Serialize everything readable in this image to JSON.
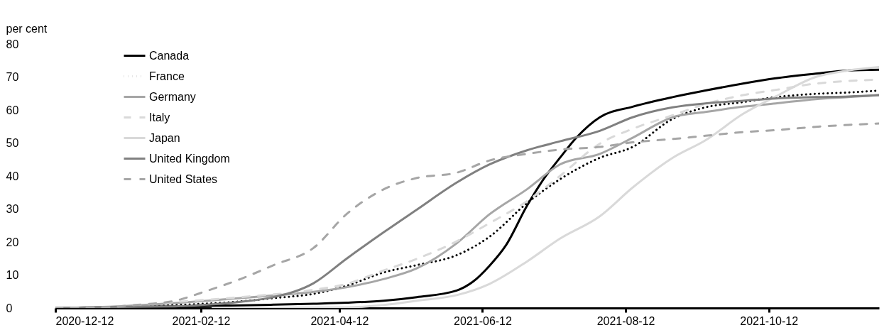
{
  "chart_data": {
    "type": "line",
    "ylabel": "per cent",
    "xlim": [
      "2020-12-12",
      "2021-11-28"
    ],
    "xticks": [
      "2020-12-12",
      "2021-02-12",
      "2021-04-12",
      "2021-06-12",
      "2021-08-12",
      "2021-10-12"
    ],
    "ylim": [
      0,
      80
    ],
    "yticks": [
      0,
      10,
      20,
      30,
      40,
      50,
      60,
      70,
      80
    ],
    "grid": false,
    "legend": "top left",
    "series": [
      {
        "name": "Canada",
        "color": "#000000",
        "line_style": "solid",
        "x": [
          "2020-12-12",
          "2021-01-01",
          "2021-02-01",
          "2021-03-01",
          "2021-03-15",
          "2021-04-01",
          "2021-04-15",
          "2021-05-01",
          "2021-05-15",
          "2021-06-01",
          "2021-06-08",
          "2021-06-15",
          "2021-06-22",
          "2021-07-01",
          "2021-07-08",
          "2021-07-15",
          "2021-07-22",
          "2021-08-01",
          "2021-08-15",
          "2021-09-01",
          "2021-09-15",
          "2021-10-01",
          "2021-10-15",
          "2021-11-01",
          "2021-11-15",
          "2021-11-28"
        ],
        "values": [
          0,
          0.2,
          0.5,
          0.8,
          1.0,
          1.3,
          1.6,
          2.2,
          3.3,
          5.3,
          8,
          12.8,
          19,
          31,
          39,
          45.5,
          51.6,
          57.8,
          61,
          63.9,
          65.9,
          68,
          69.6,
          71,
          72,
          72.2
        ]
      },
      {
        "name": "France",
        "color": "#000000",
        "line_style": "dotted",
        "x": [
          "2020-12-12",
          "2021-01-01",
          "2021-02-01",
          "2021-03-01",
          "2021-03-15",
          "2021-04-01",
          "2021-04-15",
          "2021-05-01",
          "2021-05-15",
          "2021-06-01",
          "2021-06-15",
          "2021-07-01",
          "2021-07-15",
          "2021-08-01",
          "2021-08-15",
          "2021-09-01",
          "2021-09-15",
          "2021-10-01",
          "2021-10-15",
          "2021-11-01",
          "2021-11-15",
          "2021-11-28"
        ],
        "values": [
          0,
          0.1,
          0.9,
          2.0,
          3.0,
          4.3,
          6.7,
          10.8,
          13,
          16,
          21.6,
          31.8,
          39,
          45.5,
          48.8,
          57.3,
          60.8,
          62.4,
          63.9,
          64.9,
          65.3,
          65.9
        ]
      },
      {
        "name": "Germany",
        "color": "#a6a6a6",
        "line_style": "solid",
        "x": [
          "2020-12-12",
          "2021-01-01",
          "2021-02-01",
          "2021-03-01",
          "2021-03-15",
          "2021-04-01",
          "2021-04-15",
          "2021-05-01",
          "2021-05-15",
          "2021-06-01",
          "2021-06-15",
          "2021-07-01",
          "2021-07-15",
          "2021-08-01",
          "2021-08-15",
          "2021-09-01",
          "2021-09-15",
          "2021-10-01",
          "2021-10-15",
          "2021-11-01",
          "2021-11-15",
          "2021-11-28"
        ],
        "values": [
          0,
          0.3,
          1.5,
          3.0,
          3.8,
          4.9,
          6.3,
          8.8,
          12,
          19.6,
          28.4,
          36,
          43.5,
          46.7,
          51.6,
          57.8,
          59.4,
          61,
          62,
          63.3,
          63.9,
          64.5
        ]
      },
      {
        "name": "Italy",
        "color": "#d9d9d9",
        "line_style": "dashed",
        "x": [
          "2020-12-12",
          "2021-01-01",
          "2021-02-01",
          "2021-03-01",
          "2021-04-01",
          "2021-04-15",
          "2021-05-01",
          "2021-05-15",
          "2021-06-01",
          "2021-06-15",
          "2021-07-01",
          "2021-07-15",
          "2021-08-01",
          "2021-08-15",
          "2021-09-01",
          "2021-09-15",
          "2021-10-01",
          "2021-10-15",
          "2021-11-01",
          "2021-11-15",
          "2021-11-28"
        ],
        "values": [
          0,
          0.2,
          1.8,
          3.3,
          5.5,
          7.3,
          11.4,
          14.9,
          20.2,
          25.7,
          32.4,
          40,
          49.8,
          54.3,
          58.4,
          61.8,
          64.5,
          66.1,
          68,
          68.8,
          69.2
        ]
      },
      {
        "name": "Japan",
        "color": "#d9d9d9",
        "line_style": "solid",
        "x": [
          "2021-02-17",
          "2021-04-15",
          "2021-05-01",
          "2021-05-15",
          "2021-06-01",
          "2021-06-15",
          "2021-07-01",
          "2021-07-15",
          "2021-08-01",
          "2021-08-15",
          "2021-09-01",
          "2021-09-15",
          "2021-10-01",
          "2021-10-15",
          "2021-11-01",
          "2021-11-15",
          "2021-11-28"
        ],
        "values": [
          0,
          0.2,
          0.9,
          2.2,
          3.9,
          7.3,
          14.1,
          21,
          27.8,
          36.5,
          45.5,
          50.8,
          58.8,
          64.1,
          70,
          72,
          73
        ]
      },
      {
        "name": "United Kingdom",
        "color": "#808080",
        "line_style": "solid",
        "x": [
          "2020-12-12",
          "2021-01-01",
          "2021-01-15",
          "2021-02-01",
          "2021-02-12",
          "2021-03-01",
          "2021-03-15",
          "2021-04-01",
          "2021-04-15",
          "2021-05-01",
          "2021-05-15",
          "2021-06-01",
          "2021-06-15",
          "2021-07-01",
          "2021-07-15",
          "2021-08-01",
          "2021-08-15",
          "2021-09-01",
          "2021-09-15",
          "2021-10-01",
          "2021-10-15",
          "2021-11-01",
          "2021-11-15",
          "2021-11-28"
        ],
        "values": [
          0,
          0.2,
          0.4,
          0.5,
          0.9,
          1.9,
          3.3,
          7.5,
          14.9,
          23,
          29.8,
          38,
          43.5,
          47.8,
          50.5,
          53.7,
          57.8,
          60.8,
          62,
          62.8,
          63.5,
          63.9,
          64.1,
          64.5
        ]
      },
      {
        "name": "United States",
        "color": "#a6a6a6",
        "line_style": "dashed",
        "x": [
          "2020-12-12",
          "2021-01-01",
          "2021-01-15",
          "2021-02-01",
          "2021-02-15",
          "2021-03-01",
          "2021-03-15",
          "2021-04-01",
          "2021-04-15",
          "2021-05-01",
          "2021-05-15",
          "2021-06-01",
          "2021-06-15",
          "2021-07-01",
          "2021-07-15",
          "2021-08-01",
          "2021-08-15",
          "2021-09-01",
          "2021-09-15",
          "2021-10-01",
          "2021-10-15",
          "2021-11-01",
          "2021-11-15",
          "2021-11-28"
        ],
        "values": [
          0,
          0.2,
          0.9,
          2.2,
          5.3,
          8.8,
          13,
          18.2,
          28.4,
          36,
          39.4,
          41,
          44.7,
          46.7,
          48,
          48.8,
          50.2,
          51.2,
          52.2,
          53.3,
          53.9,
          54.9,
          55.5,
          55.9
        ]
      }
    ]
  }
}
